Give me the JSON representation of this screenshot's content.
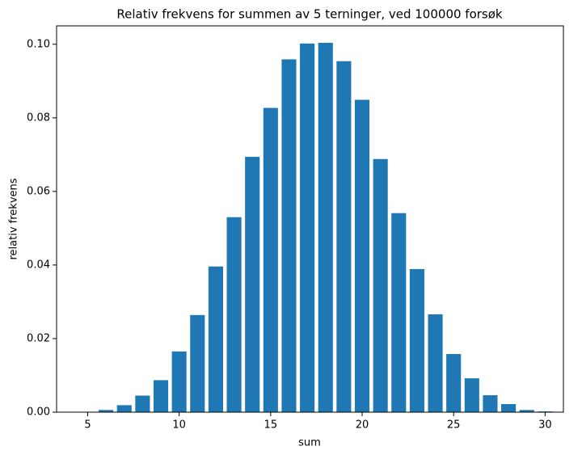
{
  "chart_data": {
    "type": "bar",
    "title": "Relativ frekvens for summen av 5 terninger, ved 100000 forsøk",
    "x_label": "sum",
    "y_label": "relativ frekvens",
    "x": [
      5,
      6,
      7,
      8,
      9,
      10,
      11,
      12,
      13,
      14,
      15,
      16,
      17,
      18,
      19,
      20,
      21,
      22,
      23,
      24,
      25,
      26,
      27,
      28,
      29,
      30
    ],
    "values": [
      0.0001,
      0.0006,
      0.0019,
      0.0045,
      0.0087,
      0.0165,
      0.0264,
      0.0396,
      0.053,
      0.0694,
      0.0827,
      0.0959,
      0.1002,
      0.1004,
      0.0954,
      0.0849,
      0.0688,
      0.0541,
      0.0389,
      0.0266,
      0.0158,
      0.0092,
      0.0046,
      0.0022,
      0.0006,
      0.0002
    ],
    "color": "#1f77b4",
    "xlim": [
      3.3,
      31.0
    ],
    "xticks": [
      5,
      10,
      15,
      20,
      25,
      30
    ],
    "ylim": [
      0,
      0.105
    ],
    "yticks": [
      {
        "value": 0,
        "label": "0.00"
      },
      {
        "value": 0.02,
        "label": "0.02"
      },
      {
        "value": 0.04,
        "label": "0.04"
      },
      {
        "value": 0.06,
        "label": "0.06"
      },
      {
        "value": 0.08,
        "label": "0.08"
      },
      {
        "value": 0.1,
        "label": "0.10"
      }
    ],
    "grid": false
  }
}
